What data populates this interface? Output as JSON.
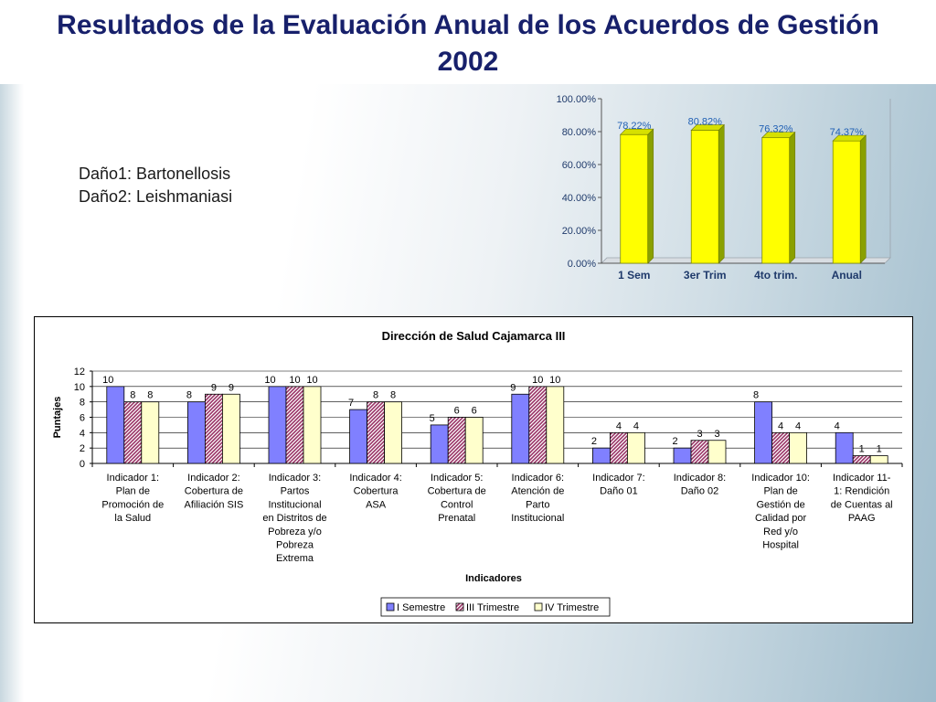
{
  "slide": {
    "title": "Resultados de la Evaluación Anual de los Acuerdos de Gestión 2002",
    "dano_lines": [
      "Daño1: Bartonellosis",
      "Daño2: Leishmaniasi"
    ]
  },
  "colors": {
    "title": "#17206b",
    "top_bar_fill": "#ffff00",
    "top_bar_side": "#8aa000",
    "semestre": "#8080ff",
    "iii_trimestre": "#993366",
    "iv_trimestre": "#ffffcc"
  },
  "chart_data": [
    {
      "type": "bar",
      "categories": [
        "1 Sem",
        "3er Trim",
        "4to trim.",
        "Anual"
      ],
      "values": [
        78.22,
        80.82,
        76.32,
        74.37
      ],
      "value_labels": [
        "78.22%",
        "80.82%",
        "76.32%",
        "74.37%"
      ],
      "ylim": [
        0,
        100
      ],
      "ytick_labels": [
        "0.00%",
        "20.00%",
        "40.00%",
        "60.00%",
        "80.00%",
        "100.00%"
      ],
      "title": "",
      "xlabel": "",
      "ylabel": "",
      "grid": false
    },
    {
      "type": "bar",
      "title": "Dirección de Salud Cajamarca III",
      "xlabel": "Indicadores",
      "ylabel": "Puntajes",
      "ylim": [
        0,
        12
      ],
      "yticks": [
        0,
        2,
        4,
        6,
        8,
        10,
        12
      ],
      "legend": "bottom",
      "grid": true,
      "categories": [
        [
          "Indicador 1:",
          "Plan de",
          "Promoción de",
          "la Salud"
        ],
        [
          "Indicador 2:",
          "Cobertura de",
          "Afiliación SIS"
        ],
        [
          "Indicador 3:",
          "Partos",
          "Institucional",
          "en Distritos de",
          "Pobreza y/o",
          "Pobreza",
          "Extrema"
        ],
        [
          "Indicador 4:",
          "Cobertura",
          "ASA"
        ],
        [
          "Indicador 5:",
          "Cobertura de",
          "Control",
          "Prenatal"
        ],
        [
          "Indicador 6:",
          "Atención de",
          "Parto",
          "Institucional"
        ],
        [
          "Indicador 7:",
          "Daño 01"
        ],
        [
          "Indicador 8:",
          "Daño 02"
        ],
        [
          "Indicador 10:",
          "Plan de",
          "Gestión de",
          "Calidad por",
          "Red y/o",
          "Hospital"
        ],
        [
          "Indicador 11-",
          "1: Rendición",
          "de Cuentas al",
          "PAAG"
        ]
      ],
      "series": [
        {
          "name": "I Semestre",
          "values": [
            10,
            8,
            10,
            7,
            5,
            9,
            2,
            2,
            8,
            4
          ],
          "labels": [
            "10",
            "8",
            "10",
            "7",
            "5",
            "9",
            "2",
            "2",
            "8",
            "4"
          ]
        },
        {
          "name": "III Trimestre",
          "values": [
            8,
            9,
            10,
            8,
            6,
            10,
            4,
            3,
            4,
            1
          ],
          "labels": [
            "8",
            "9",
            "10",
            "8",
            "6",
            "10",
            "4",
            "3",
            "4",
            "1"
          ]
        },
        {
          "name": "IV Trimestre",
          "values": [
            8,
            9,
            10,
            8,
            6,
            10,
            4,
            3,
            4,
            1
          ],
          "labels": [
            "8",
            "9",
            "10",
            "8",
            "6",
            "10",
            "4",
            "3",
            "4",
            "1"
          ]
        }
      ]
    }
  ]
}
